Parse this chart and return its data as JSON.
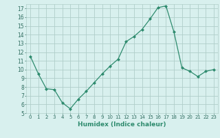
{
  "x": [
    0,
    1,
    2,
    3,
    4,
    5,
    6,
    7,
    8,
    9,
    10,
    11,
    12,
    13,
    14,
    15,
    16,
    17,
    18,
    19,
    20,
    21,
    22,
    23
  ],
  "y": [
    11.5,
    9.5,
    7.8,
    7.7,
    6.2,
    5.5,
    6.6,
    7.5,
    8.5,
    9.5,
    10.4,
    11.2,
    13.2,
    13.8,
    14.6,
    15.8,
    17.1,
    17.3,
    14.3,
    10.2,
    9.8,
    9.2,
    9.8,
    10.0
  ],
  "line_color": "#2e8b6e",
  "marker": "D",
  "marker_size": 2,
  "bg_color": "#d8f0ee",
  "grid_color": "#b0ceca",
  "xlabel": "Humidex (Indice chaleur)",
  "xlim": [
    -0.5,
    23.5
  ],
  "ylim": [
    5,
    17.5
  ],
  "yticks": [
    5,
    6,
    7,
    8,
    9,
    10,
    11,
    12,
    13,
    14,
    15,
    16,
    17
  ],
  "xticks": [
    0,
    1,
    2,
    3,
    4,
    5,
    6,
    7,
    8,
    9,
    10,
    11,
    12,
    13,
    14,
    15,
    16,
    17,
    18,
    19,
    20,
    21,
    22,
    23
  ]
}
